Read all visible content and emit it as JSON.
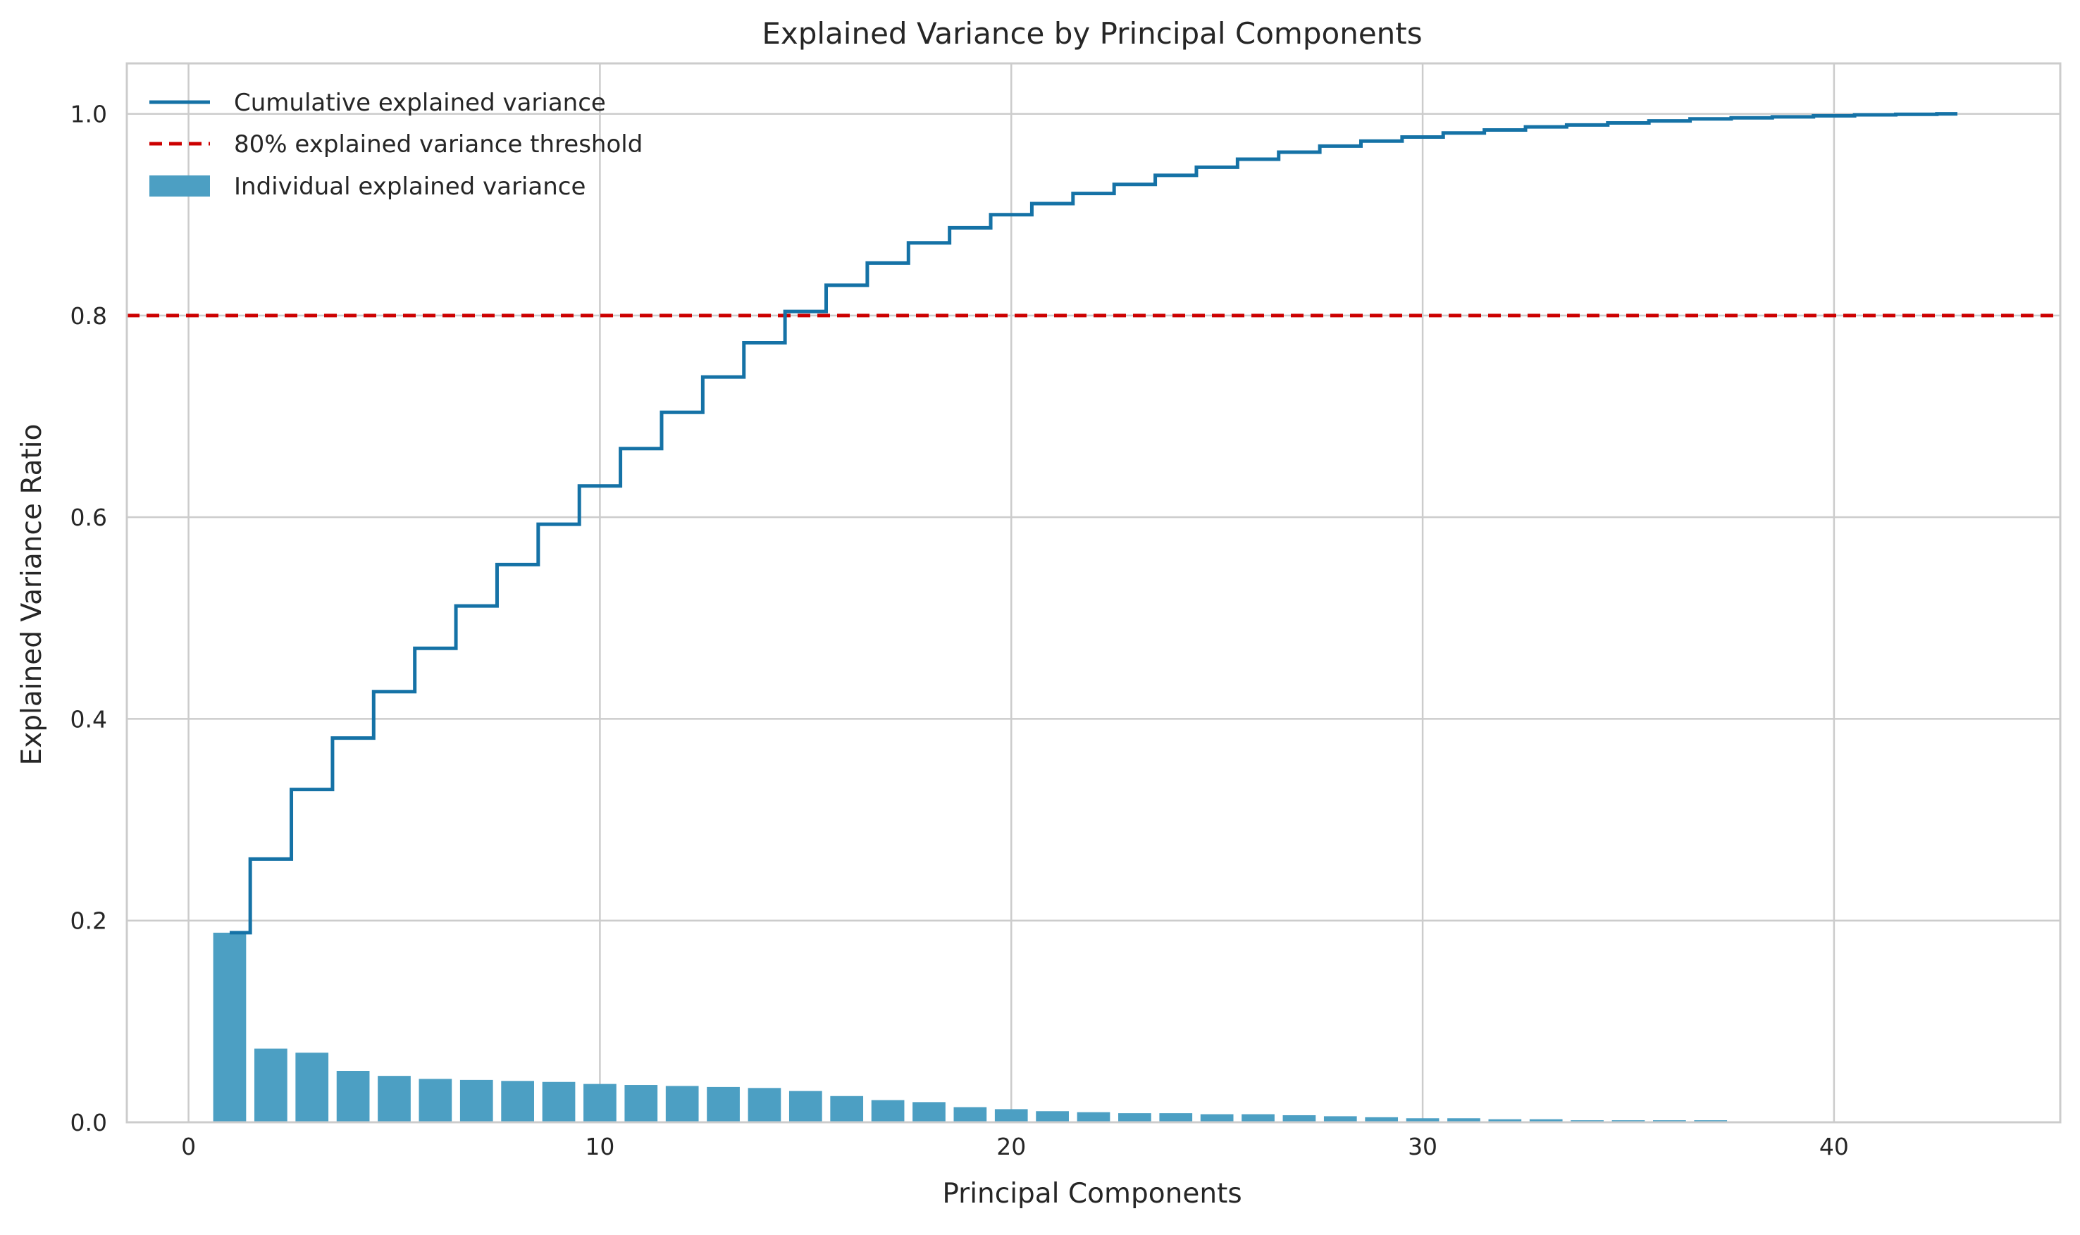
{
  "chart_data": {
    "type": "bar",
    "title": "Explained Variance by Principal Components",
    "xlabel": "Principal Components",
    "ylabel": "Explained Variance Ratio",
    "xlim": [
      -1.5,
      45.5
    ],
    "ylim": [
      0,
      1.05
    ],
    "x_ticks": [
      0,
      10,
      20,
      30,
      40
    ],
    "y_ticks": [
      0.0,
      0.2,
      0.4,
      0.6,
      0.8,
      1.0
    ],
    "x_tick_labels": [
      "0",
      "10",
      "20",
      "30",
      "40"
    ],
    "y_tick_labels": [
      "0.0",
      "0.2",
      "0.4",
      "0.6",
      "0.8",
      "1.0"
    ],
    "grid": true,
    "legend_position": "top-left",
    "x": [
      1,
      2,
      3,
      4,
      5,
      6,
      7,
      8,
      9,
      10,
      11,
      12,
      13,
      14,
      15,
      16,
      17,
      18,
      19,
      20,
      21,
      22,
      23,
      24,
      25,
      26,
      27,
      28,
      29,
      30,
      31,
      32,
      33,
      34,
      35,
      36,
      37,
      38,
      39,
      40,
      41,
      42,
      43
    ],
    "series": [
      {
        "name": "Individual explained variance",
        "kind": "bar",
        "color": "#4c9fc3",
        "values": [
          0.188,
          0.073,
          0.069,
          0.051,
          0.046,
          0.043,
          0.042,
          0.041,
          0.04,
          0.038,
          0.037,
          0.036,
          0.035,
          0.034,
          0.031,
          0.026,
          0.022,
          0.02,
          0.015,
          0.013,
          0.011,
          0.01,
          0.009,
          0.009,
          0.008,
          0.008,
          0.007,
          0.006,
          0.005,
          0.004,
          0.004,
          0.003,
          0.003,
          0.002,
          0.002,
          0.002,
          0.002,
          0.001,
          0.001,
          0.001,
          0.001,
          0.0005,
          0.0005
        ]
      },
      {
        "name": "Cumulative explained variance",
        "kind": "step",
        "color": "#1572a6",
        "values": [
          0.188,
          0.261,
          0.33,
          0.381,
          0.427,
          0.47,
          0.512,
          0.553,
          0.593,
          0.631,
          0.668,
          0.704,
          0.739,
          0.773,
          0.804,
          0.83,
          0.852,
          0.872,
          0.887,
          0.9,
          0.911,
          0.921,
          0.93,
          0.939,
          0.947,
          0.955,
          0.962,
          0.968,
          0.973,
          0.977,
          0.981,
          0.984,
          0.987,
          0.989,
          0.991,
          0.993,
          0.995,
          0.996,
          0.997,
          0.998,
          0.999,
          0.9995,
          1.0
        ]
      },
      {
        "name": "80% explained variance threshold",
        "kind": "hline",
        "color": "#cc0000",
        "value": 0.8
      }
    ],
    "legend": [
      "Cumulative explained variance",
      "80% explained variance threshold",
      "Individual explained variance"
    ]
  }
}
